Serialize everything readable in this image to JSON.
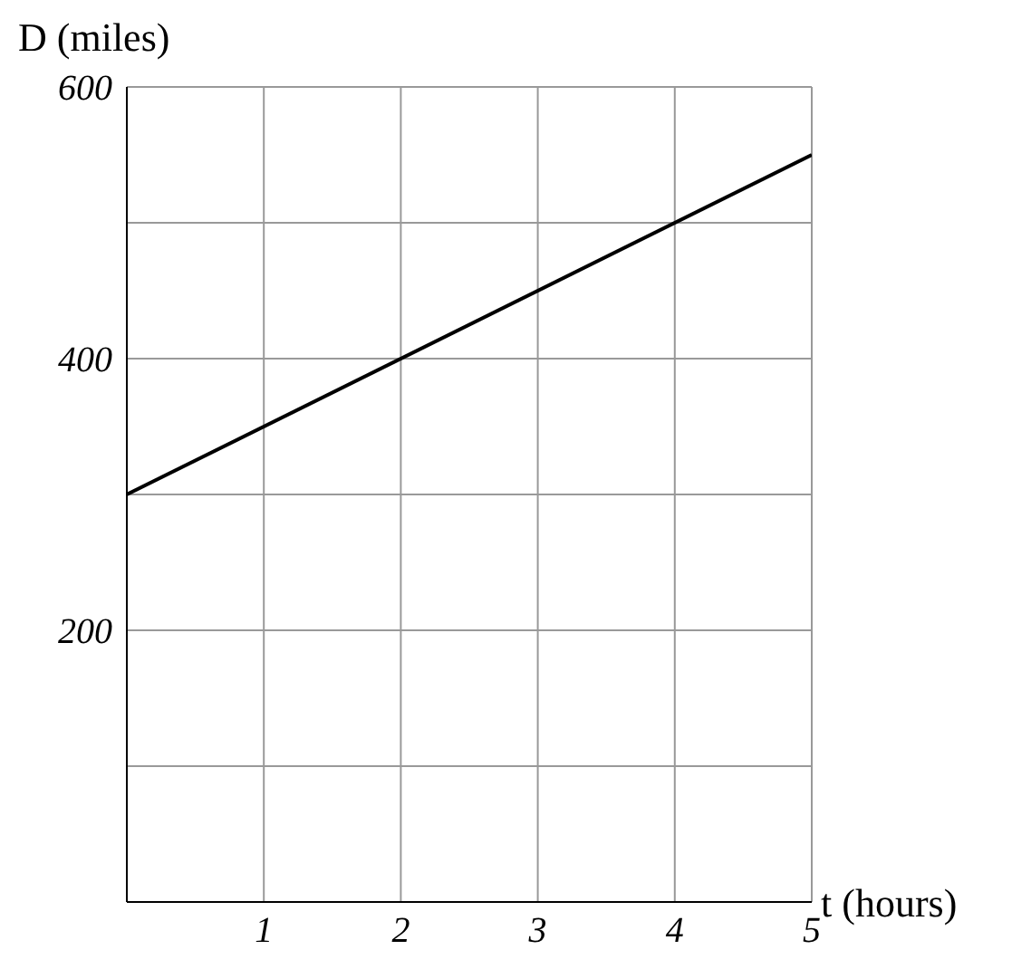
{
  "chart_data": {
    "type": "line",
    "xlabel": "t (hours)",
    "ylabel": "D (miles)",
    "x": [
      0,
      5
    ],
    "series": [
      {
        "color": "#000000",
        "values": [
          300,
          550
        ]
      }
    ],
    "xlim": [
      0,
      5
    ],
    "ylim": [
      0,
      600
    ],
    "xticks": [
      1,
      2,
      3,
      4,
      5
    ],
    "yticks": [
      {
        "value": 100,
        "label": null
      },
      200,
      {
        "value": 300,
        "label": null
      },
      400,
      {
        "value": 500,
        "label": null
      },
      600
    ],
    "grid": true,
    "marker": "none",
    "line_style": "solid"
  }
}
